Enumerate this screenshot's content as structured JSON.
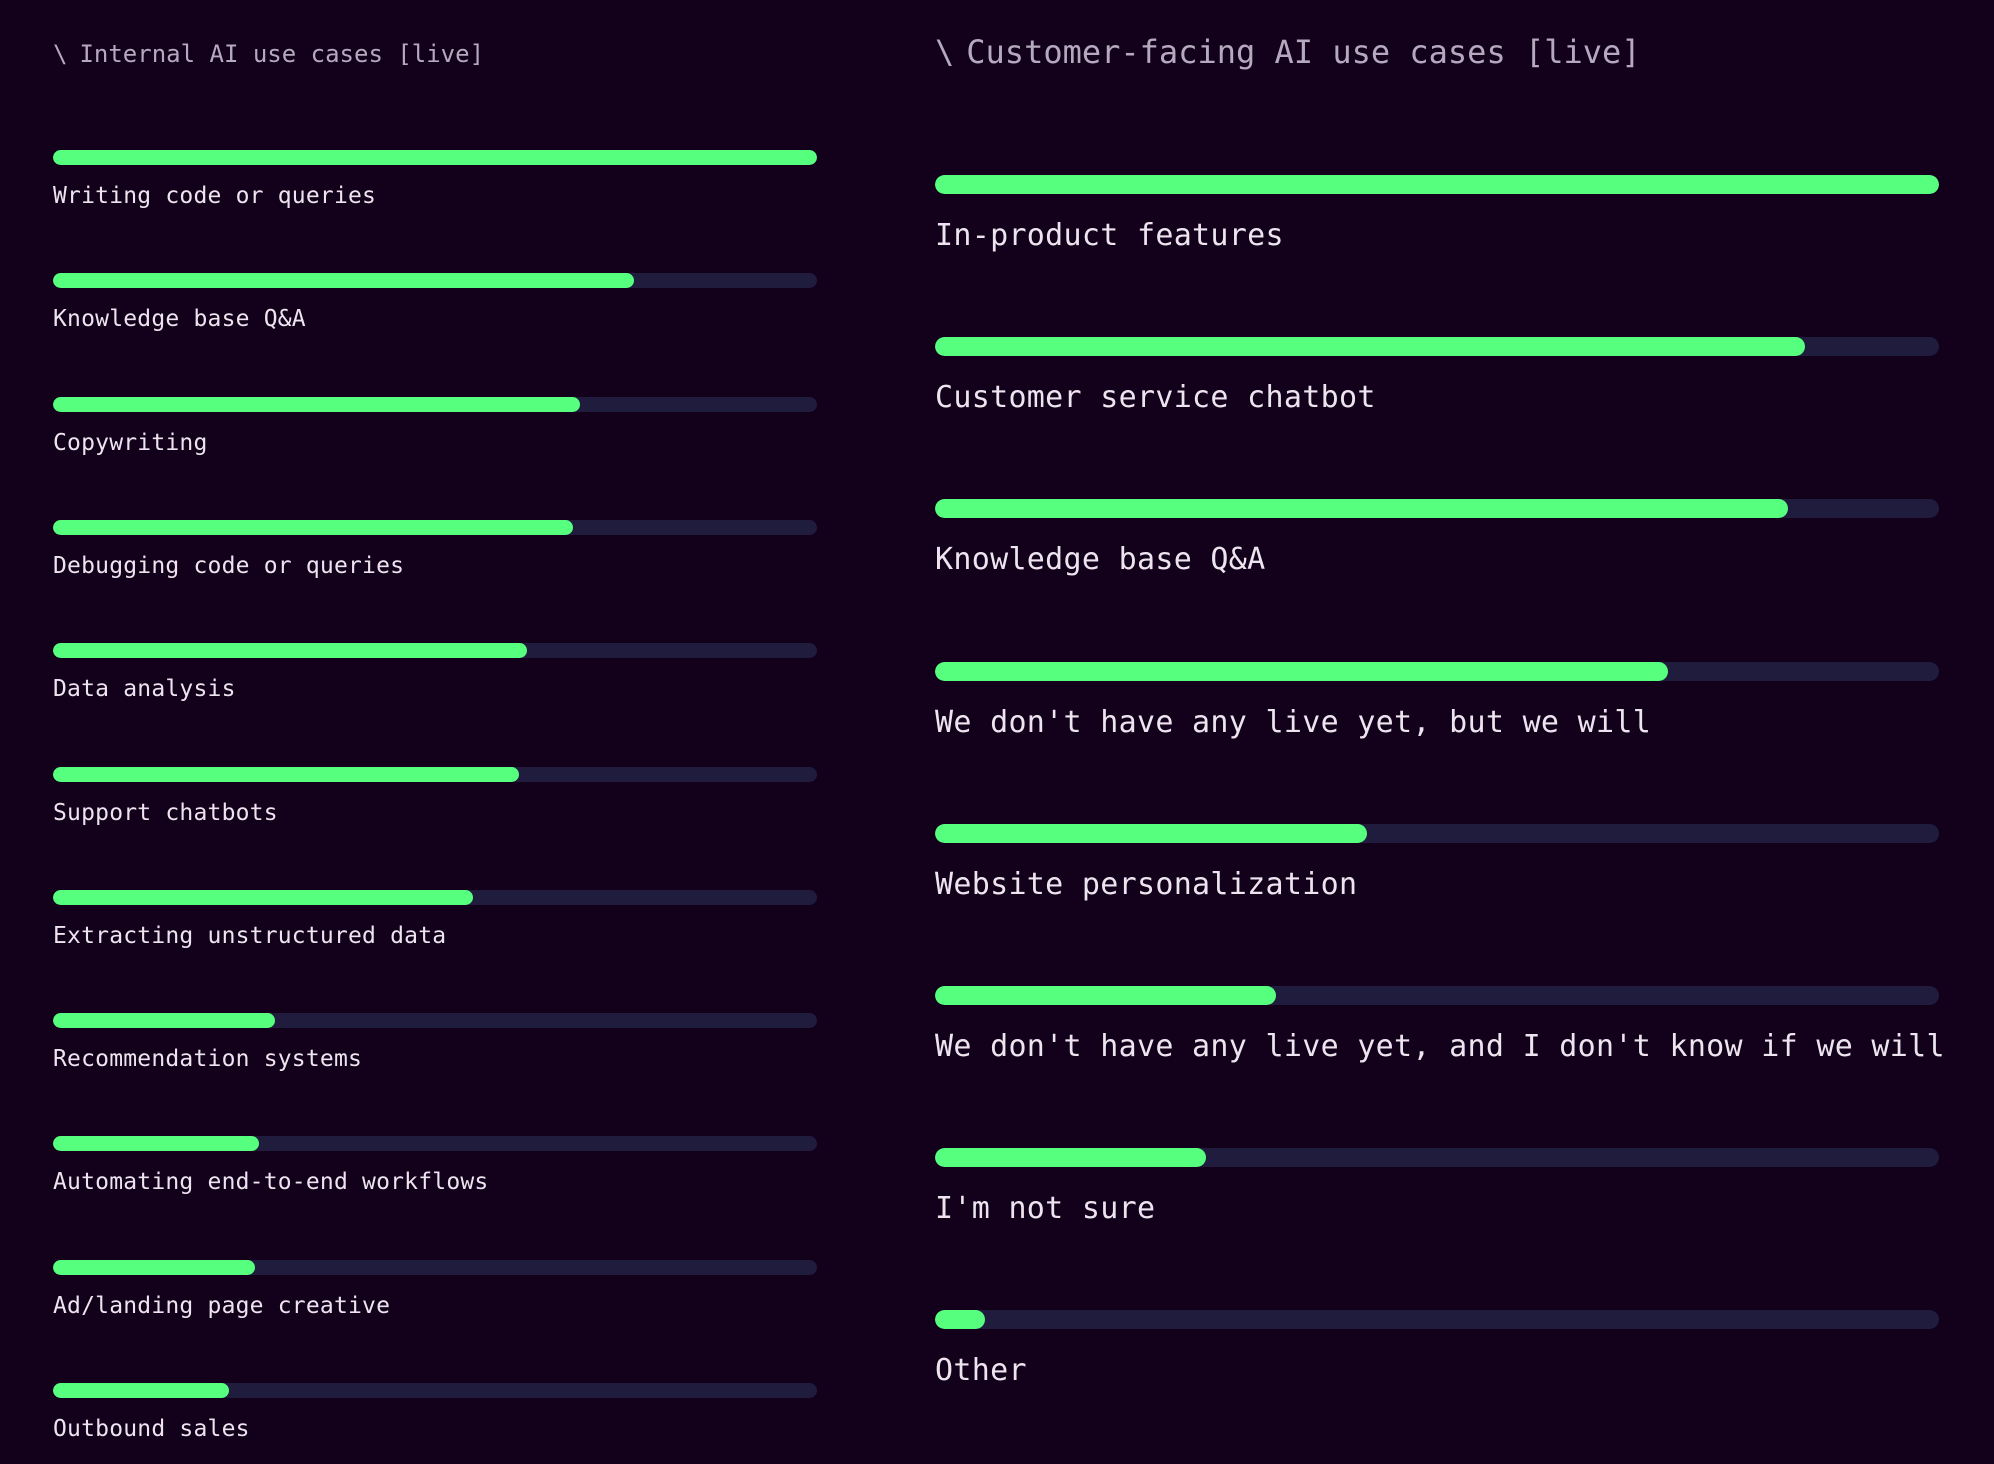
{
  "colors": {
    "background": "#13001a",
    "bar_fill": "#57ff7f",
    "bar_track": "#1f1c3d",
    "label_text": "#ece4ef",
    "header_text": "#b5a9bd"
  },
  "panels": [
    {
      "header_icon": "\\",
      "title": "Internal AI use cases [live]"
    },
    {
      "header_icon": "\\",
      "title": "Customer-facing AI use cases [live]"
    }
  ],
  "chart_data": [
    {
      "type": "bar",
      "orientation": "horizontal",
      "title": "Internal AI use cases [live]",
      "xlabel": "",
      "ylabel": "",
      "xlim": [
        0,
        100
      ],
      "grid": false,
      "legend": null,
      "value_unit": "relative % of top item (bars unlabeled)",
      "categories": [
        "Writing code or queries",
        "Knowledge base Q&A",
        "Copywriting",
        "Debugging code or queries",
        "Data analysis",
        "Support chatbots",
        "Extracting unstructured data",
        "Recommendation systems",
        "Automating end-to-end workflows",
        "Ad/landing page creative",
        "Outbound sales"
      ],
      "values": [
        100,
        76,
        69,
        68,
        62,
        61,
        55,
        29,
        27,
        26.5,
        23
      ]
    },
    {
      "type": "bar",
      "orientation": "horizontal",
      "title": "Customer-facing AI use cases [live]",
      "xlabel": "",
      "ylabel": "",
      "xlim": [
        0,
        100
      ],
      "grid": false,
      "legend": null,
      "value_unit": "relative % of top item (bars unlabeled)",
      "categories": [
        "In-product features",
        "Customer service chatbot",
        "Knowledge base Q&A",
        "We don't have any live yet, but we will",
        "Website personalization",
        "We don't have any live yet, and I don't know if we will",
        "I'm not sure",
        "Other"
      ],
      "values": [
        100,
        86.7,
        85,
        73,
        43,
        34,
        27,
        5
      ]
    }
  ]
}
